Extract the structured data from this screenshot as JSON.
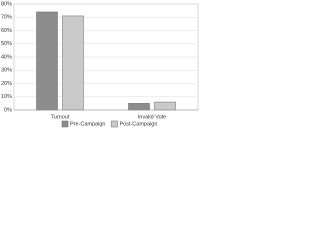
{
  "chart_data": {
    "type": "bar",
    "categories": [
      "Turnout",
      "Invalid Vote"
    ],
    "series": [
      {
        "name": "Pre-Campaign",
        "color": "#8c8c8c",
        "values": [
          74,
          5
        ]
      },
      {
        "name": "Post-Campaign",
        "color": "#cacaca",
        "values": [
          71,
          6
        ]
      }
    ],
    "ylim": [
      0,
      80
    ],
    "yticks": [
      {
        "value": 0,
        "label": "0%"
      },
      {
        "value": 10,
        "label": "10%"
      },
      {
        "value": 20,
        "label": "20%"
      },
      {
        "value": 30,
        "label": "30%"
      },
      {
        "value": 40,
        "label": "40%"
      },
      {
        "value": 50,
        "label": "50%"
      },
      {
        "value": 60,
        "label": "60%"
      },
      {
        "value": 70,
        "label": "70%"
      },
      {
        "value": 80,
        "label": "80%"
      }
    ],
    "grid": true,
    "legend": "bottom"
  }
}
